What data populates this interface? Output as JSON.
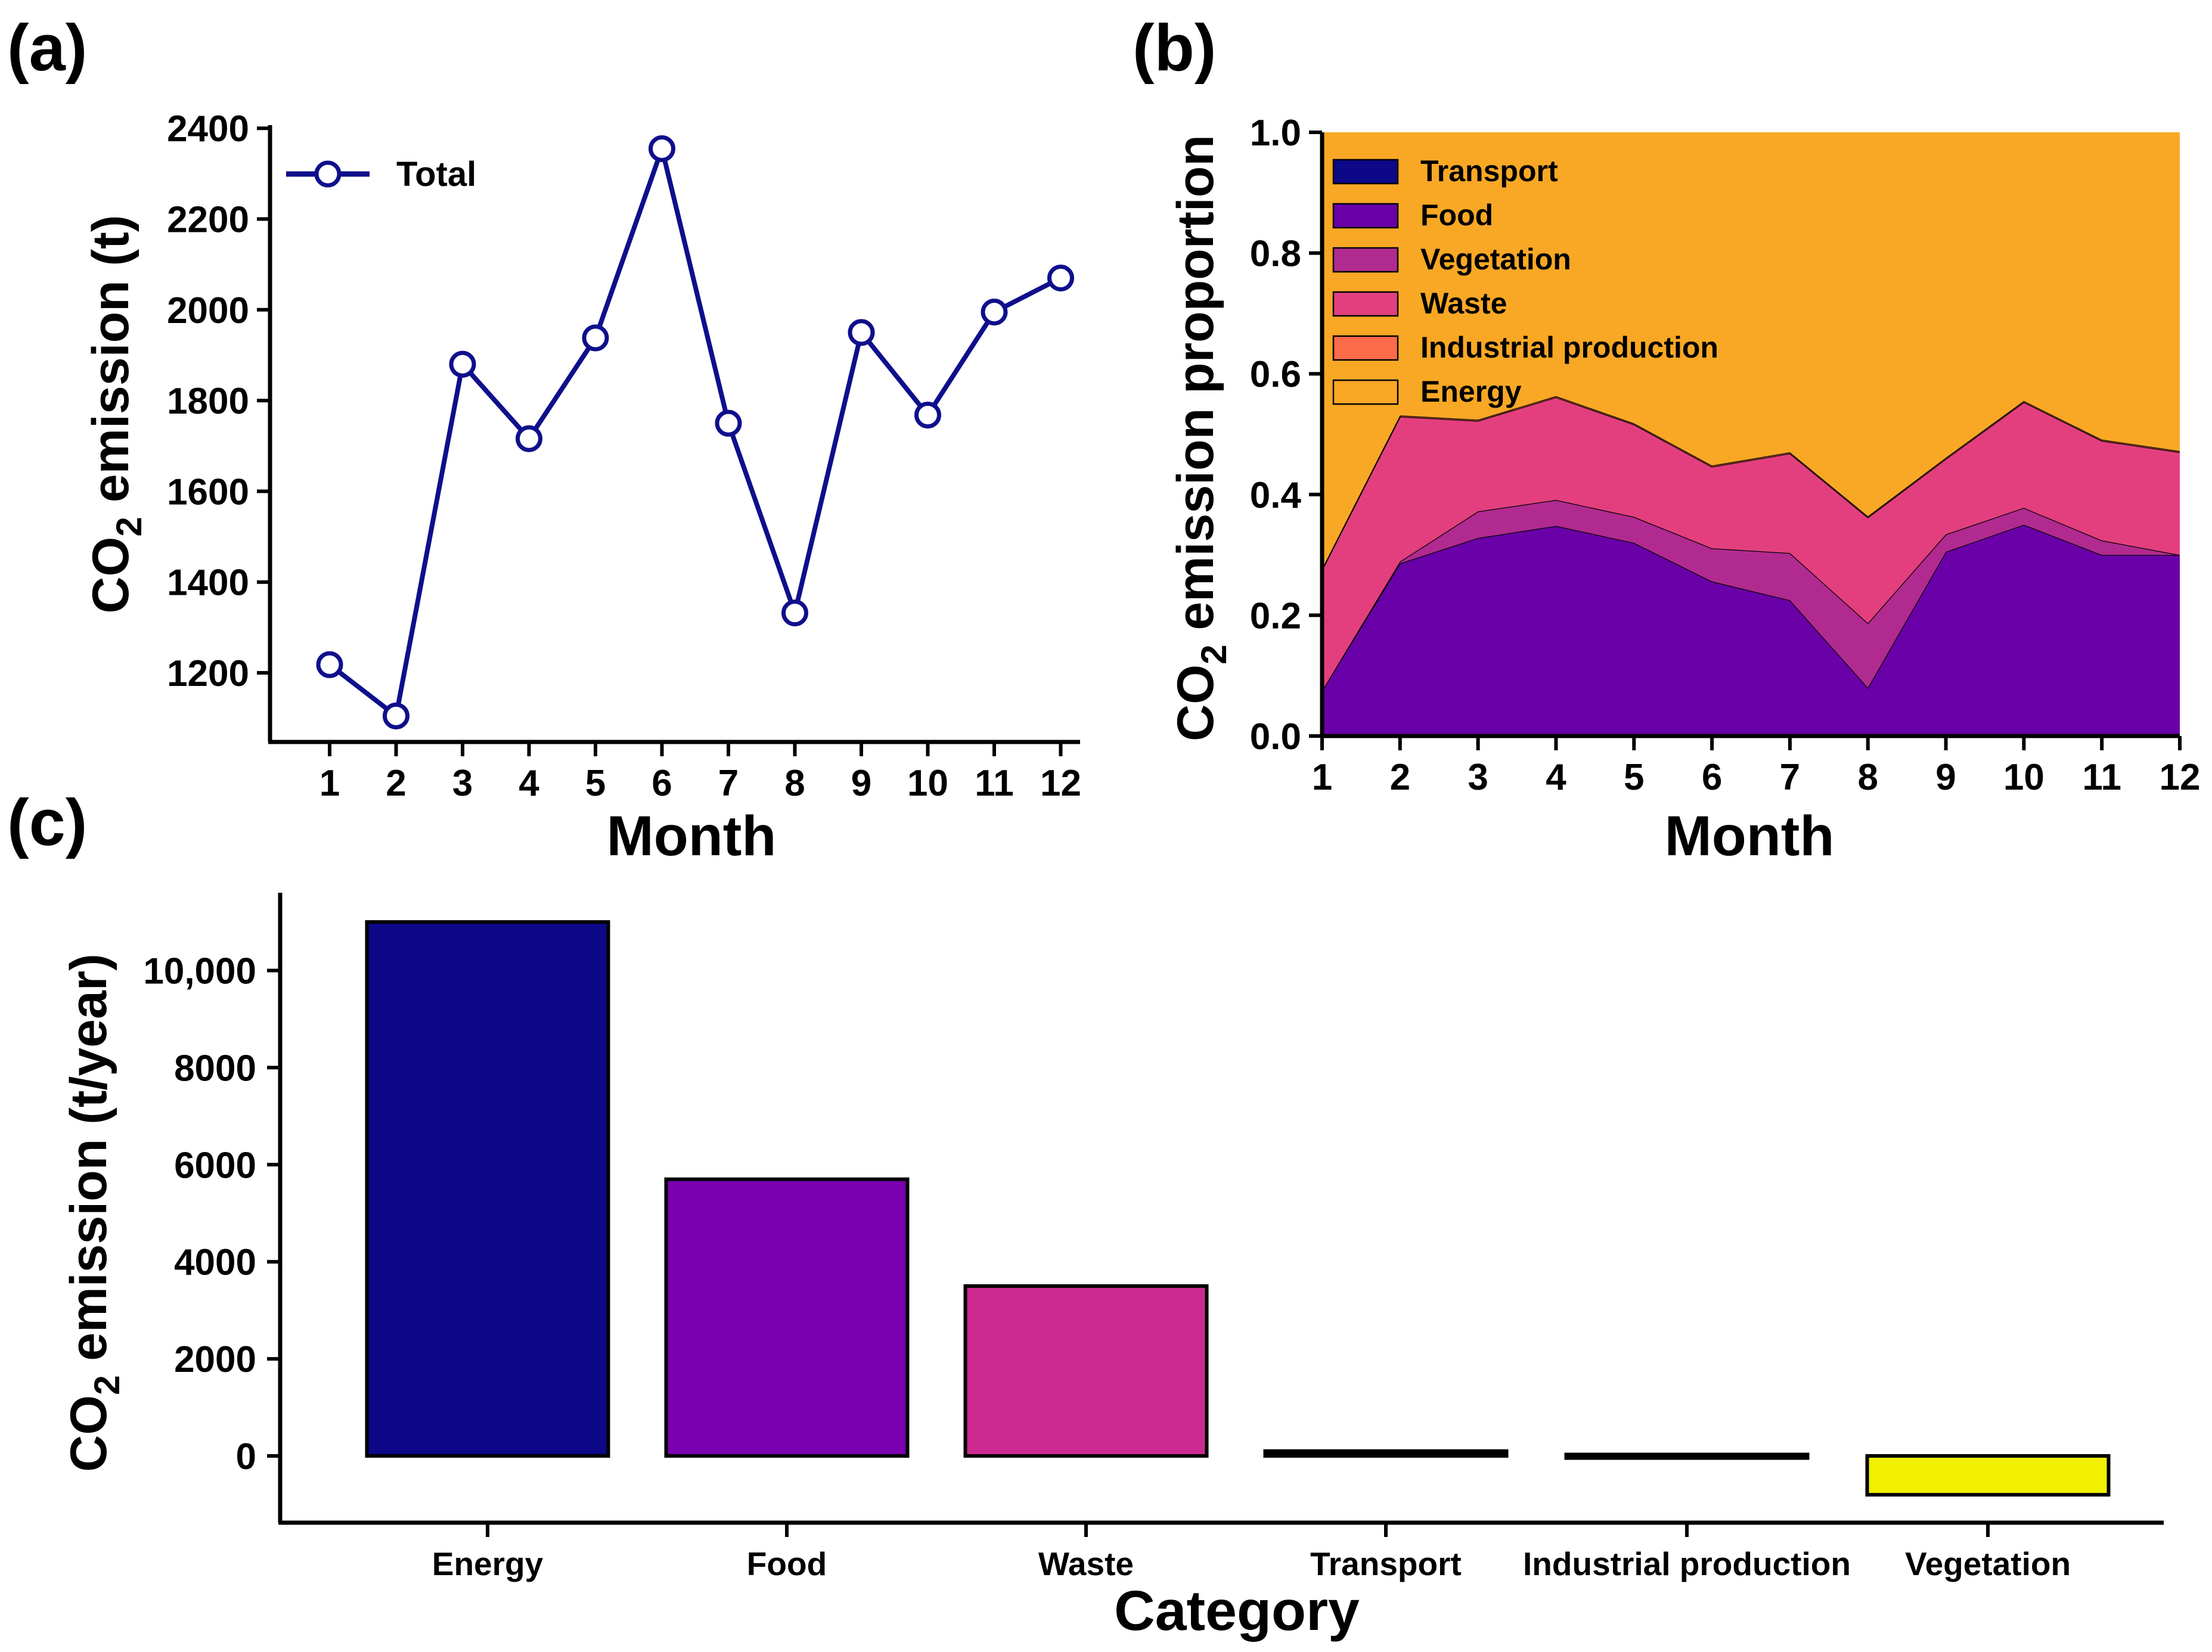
{
  "panels": {
    "a": {
      "label": "(a)"
    },
    "b": {
      "label": "(b)"
    },
    "c": {
      "label": "(c)"
    }
  },
  "chart_data": [
    {
      "id": "a",
      "type": "line",
      "xlabel": "Month",
      "ylabel": "CO2 emission (t)",
      "ylabel_parts": [
        "CO",
        "2",
        " emission (t)"
      ],
      "x": [
        1,
        2,
        3,
        4,
        5,
        6,
        7,
        8,
        9,
        10,
        11,
        12
      ],
      "ylim": [
        1100,
        2400
      ],
      "yticks": [
        1200,
        1400,
        1600,
        1800,
        2000,
        2200,
        2400
      ],
      "series": [
        {
          "name": "Total",
          "color": "#0f0f8c",
          "values": [
            1218,
            1105,
            1880,
            1716,
            1938,
            2355,
            1750,
            1332,
            1950,
            1768,
            1995,
            2070
          ]
        }
      ],
      "legend": "top-left"
    },
    {
      "id": "b",
      "type": "area",
      "xlabel": "Month",
      "ylabel": "CO2 emission proportion",
      "ylabel_parts": [
        "CO",
        "2",
        " emission proportion"
      ],
      "x": [
        1,
        2,
        3,
        4,
        5,
        6,
        7,
        8,
        9,
        10,
        11,
        12
      ],
      "ylim": [
        0,
        1.0
      ],
      "yticks": [
        "0.0",
        "0.2",
        "0.4",
        "0.6",
        "0.8",
        "1.0"
      ],
      "series": [
        {
          "name": "Transport",
          "color": "#0d0887",
          "values": [
            0.003,
            0.003,
            0.003,
            0.003,
            0.003,
            0.003,
            0.003,
            0.003,
            0.003,
            0.003,
            0.003,
            0.003
          ]
        },
        {
          "name": "Food",
          "color": "#6a00a8",
          "values": [
            0.072,
            0.283,
            0.325,
            0.345,
            0.317,
            0.253,
            0.222,
            0.077,
            0.302,
            0.347,
            0.297,
            0.297
          ]
        },
        {
          "name": "Vegetation",
          "color": "#b12a90",
          "values": [
            0.0,
            0.003,
            0.044,
            0.043,
            0.043,
            0.055,
            0.078,
            0.107,
            0.029,
            0.028,
            0.024,
            0.0
          ]
        },
        {
          "name": "Waste",
          "color": "#e33f7e",
          "values": [
            0.2,
            0.24,
            0.15,
            0.17,
            0.153,
            0.135,
            0.165,
            0.175,
            0.125,
            0.175,
            0.165,
            0.17
          ]
        },
        {
          "name": "Industrial production",
          "color": "#fc6b4a",
          "values": [
            0.002,
            0.002,
            0.002,
            0.002,
            0.002,
            0.002,
            0.002,
            0.002,
            0.002,
            0.002,
            0.002,
            0.002
          ]
        },
        {
          "name": "Energy",
          "color": "#f9a825",
          "values": [
            0.723,
            0.469,
            0.476,
            0.437,
            0.482,
            0.552,
            0.53,
            0.636,
            0.539,
            0.445,
            0.509,
            0.528
          ]
        }
      ],
      "legend": "top-left"
    },
    {
      "id": "c",
      "type": "bar",
      "xlabel": "Category",
      "ylabel": "CO2 emission (t/year)",
      "ylabel_parts": [
        "CO",
        "2",
        " emission (t/year)"
      ],
      "categories": [
        "Energy",
        "Food",
        "Waste",
        "Transport",
        "Industrial production",
        "Vegetation"
      ],
      "values": [
        11000,
        5700,
        3500,
        100,
        30,
        -800
      ],
      "colors": [
        "#0d0887",
        "#7a00b0",
        "#cc2a90",
        "#000000",
        "#000000",
        "#f0f000"
      ],
      "ylim": [
        -1000,
        11500
      ],
      "yticks": [
        "0",
        "2000",
        "4000",
        "6000",
        "8000",
        "10,000"
      ],
      "ytick_values": [
        0,
        2000,
        4000,
        6000,
        8000,
        10000
      ]
    }
  ]
}
